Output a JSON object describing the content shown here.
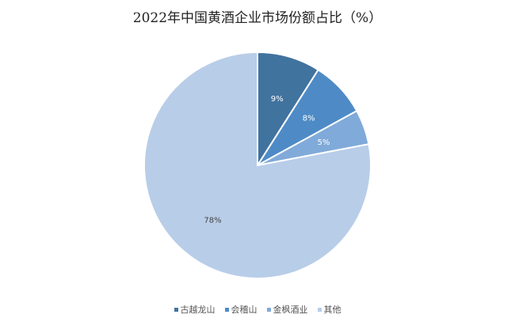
{
  "chart_data": {
    "type": "pie",
    "title": "2022年中国黄酒企业市场份额占比（%）",
    "categories": [
      "古越龙山",
      "会稽山",
      "金枫酒业",
      "其他"
    ],
    "values": [
      9,
      8,
      5,
      78
    ],
    "data_labels": [
      "9%",
      "8%",
      "5%",
      "78%"
    ],
    "colors": [
      "#41739f",
      "#4e8bc6",
      "#80aad9",
      "#b8cde8"
    ],
    "legend_position": "bottom",
    "start_angle": "12 o'clock, clockwise"
  }
}
